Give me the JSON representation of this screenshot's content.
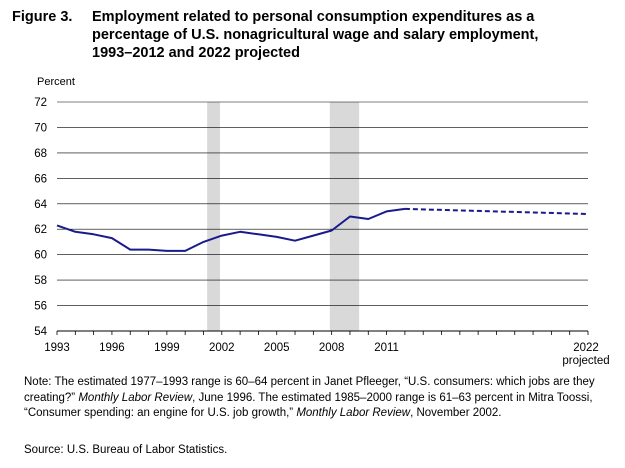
{
  "title": {
    "prefix": "Figure 3.",
    "line1": "Employment related to personal consumption expenditures as a",
    "line2": "percentage of U.S. nonagricultural wage and salary employment,",
    "line3": "1993–2012 and 2022 projected"
  },
  "chart_data": {
    "type": "line",
    "ylabel": "Percent",
    "ylim": [
      54,
      72
    ],
    "yticks": [
      54,
      56,
      58,
      60,
      62,
      64,
      66,
      68,
      70,
      72
    ],
    "xlim": [
      1993,
      2022
    ],
    "xtick_labels": [
      "1993",
      "1996",
      "1999",
      "2002",
      "2005",
      "2008",
      "2011"
    ],
    "xtick_values": [
      1993,
      1996,
      1999,
      2002,
      2005,
      2008,
      2011
    ],
    "xtick_last_label_line1": "2022",
    "xtick_last_label_line2": "projected",
    "grid": "horizontal",
    "line_color": "#1a1a8c",
    "recession_color": "#d9d9d9",
    "recession_bands": [
      {
        "start": 2001.2,
        "end": 2001.9
      },
      {
        "start": 2007.9,
        "end": 2009.5
      }
    ],
    "series": [
      {
        "style": "solid",
        "x": [
          1993,
          1994,
          1995,
          1996,
          1997,
          1998,
          1999,
          2000,
          2001,
          2002,
          2003,
          2004,
          2005,
          2006,
          2007,
          2008,
          2009,
          2010,
          2011,
          2012
        ],
        "values": [
          62.3,
          61.8,
          61.6,
          61.3,
          60.4,
          60.4,
          60.3,
          60.3,
          61.0,
          61.5,
          61.8,
          61.6,
          61.4,
          61.1,
          61.5,
          61.9,
          63.0,
          62.8,
          63.4,
          63.6
        ]
      },
      {
        "style": "dashed",
        "x": [
          2012,
          2022
        ],
        "values": [
          63.6,
          63.2
        ]
      }
    ]
  },
  "note": {
    "prefix": "Note: The estimated 1977–1993 range is 60–64 percent in Janet Pfleeger, “U.S. consumers: which jobs are they creating?” ",
    "italic1": "Monthly Labor Review",
    "mid": ", June 1996. The estimated 1985–2000 range is 61–63 percent in Mitra Toossi, “Consumer spending: an engine for U.S. job growth,” ",
    "italic2": "Monthly Labor Review",
    "suffix": ", November 2002."
  },
  "source": "Source: U.S. Bureau of Labor Statistics."
}
